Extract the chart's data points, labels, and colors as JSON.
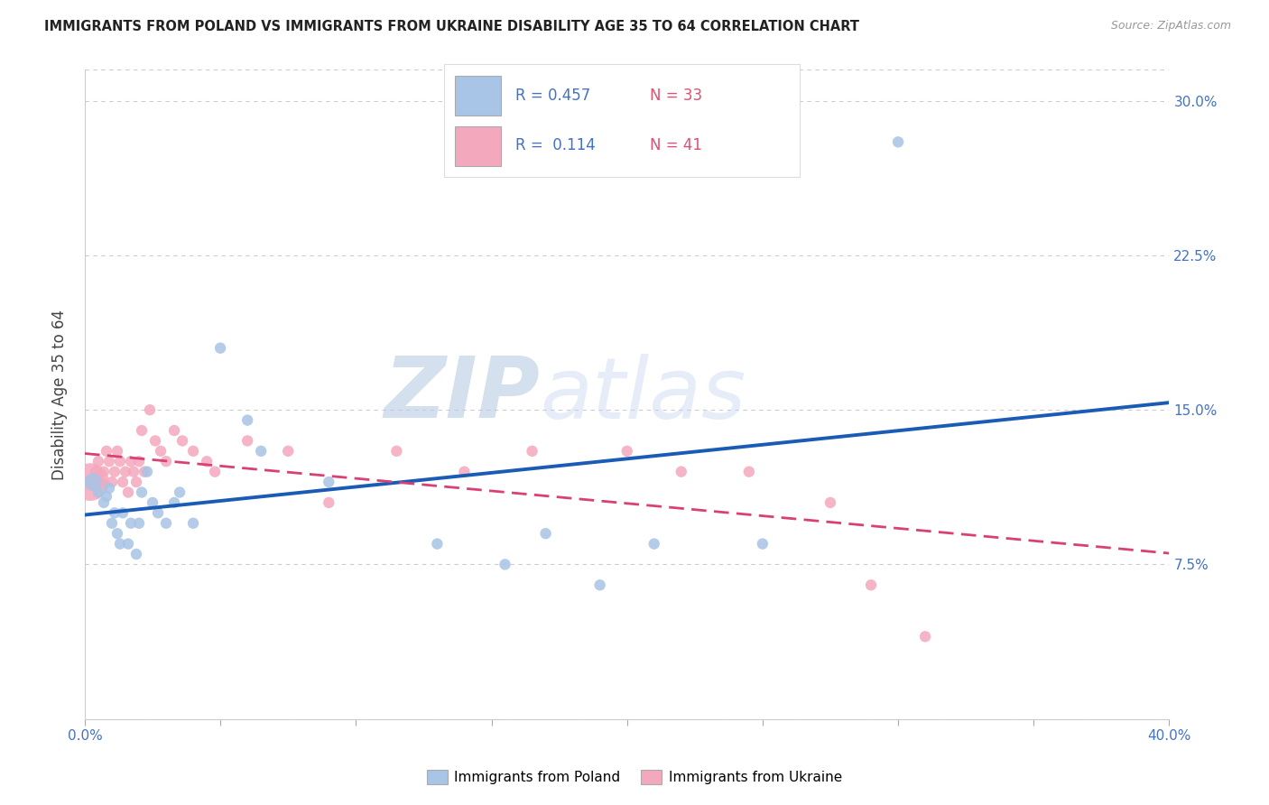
{
  "title": "IMMIGRANTS FROM POLAND VS IMMIGRANTS FROM UKRAINE DISABILITY AGE 35 TO 64 CORRELATION CHART",
  "source": "Source: ZipAtlas.com",
  "ylabel": "Disability Age 35 to 64",
  "xlim": [
    0.0,
    0.4
  ],
  "ylim": [
    0.0,
    0.315
  ],
  "xtick_positions": [
    0.0,
    0.05,
    0.1,
    0.15,
    0.2,
    0.25,
    0.3,
    0.35,
    0.4
  ],
  "xtick_labels": [
    "0.0%",
    "",
    "",
    "",
    "",
    "",
    "",
    "",
    "40.0%"
  ],
  "ytick_positions": [
    0.0,
    0.075,
    0.15,
    0.225,
    0.3
  ],
  "ytick_labels": [
    "",
    "7.5%",
    "15.0%",
    "22.5%",
    "30.0%"
  ],
  "tick_color": "#4472c4",
  "poland_color": "#a8c4e6",
  "ukraine_color": "#f4a8be",
  "poland_line_color": "#1a5cb5",
  "ukraine_line_color": "#d94075",
  "poland_R": "0.457",
  "poland_N": "33",
  "ukraine_R": "0.114",
  "ukraine_N": "41",
  "legend_label_poland": "Immigrants from Poland",
  "legend_label_ukraine": "Immigrants from Ukraine",
  "watermark_zip": "ZIP",
  "watermark_atlas": "atlas",
  "poland_x": [
    0.003,
    0.005,
    0.007,
    0.008,
    0.009,
    0.01,
    0.011,
    0.012,
    0.013,
    0.014,
    0.016,
    0.017,
    0.019,
    0.02,
    0.021,
    0.023,
    0.025,
    0.027,
    0.03,
    0.033,
    0.035,
    0.04,
    0.05,
    0.06,
    0.065,
    0.09,
    0.13,
    0.155,
    0.17,
    0.19,
    0.21,
    0.25,
    0.3
  ],
  "poland_y": [
    0.115,
    0.11,
    0.105,
    0.108,
    0.112,
    0.095,
    0.1,
    0.09,
    0.085,
    0.1,
    0.085,
    0.095,
    0.08,
    0.095,
    0.11,
    0.12,
    0.105,
    0.1,
    0.095,
    0.105,
    0.11,
    0.095,
    0.18,
    0.145,
    0.13,
    0.115,
    0.085,
    0.075,
    0.09,
    0.065,
    0.085,
    0.085,
    0.28
  ],
  "poland_size": [
    200,
    80,
    80,
    80,
    80,
    80,
    80,
    80,
    80,
    80,
    80,
    80,
    80,
    80,
    80,
    80,
    80,
    80,
    80,
    80,
    80,
    80,
    80,
    80,
    80,
    80,
    80,
    80,
    80,
    80,
    80,
    80,
    80
  ],
  "ukraine_x": [
    0.002,
    0.004,
    0.005,
    0.006,
    0.007,
    0.008,
    0.009,
    0.01,
    0.011,
    0.012,
    0.013,
    0.014,
    0.015,
    0.016,
    0.017,
    0.018,
    0.019,
    0.02,
    0.021,
    0.022,
    0.024,
    0.026,
    0.028,
    0.03,
    0.033,
    0.036,
    0.04,
    0.045,
    0.048,
    0.06,
    0.075,
    0.09,
    0.115,
    0.14,
    0.165,
    0.2,
    0.22,
    0.245,
    0.275,
    0.29,
    0.31
  ],
  "ukraine_y": [
    0.115,
    0.12,
    0.125,
    0.115,
    0.12,
    0.13,
    0.125,
    0.115,
    0.12,
    0.13,
    0.125,
    0.115,
    0.12,
    0.11,
    0.125,
    0.12,
    0.115,
    0.125,
    0.14,
    0.12,
    0.15,
    0.135,
    0.13,
    0.125,
    0.14,
    0.135,
    0.13,
    0.125,
    0.12,
    0.135,
    0.13,
    0.105,
    0.13,
    0.12,
    0.13,
    0.13,
    0.12,
    0.12,
    0.105,
    0.065,
    0.04
  ],
  "ukraine_size": [
    900,
    80,
    80,
    80,
    80,
    80,
    80,
    80,
    80,
    80,
    80,
    80,
    80,
    80,
    80,
    80,
    80,
    80,
    80,
    80,
    80,
    80,
    80,
    80,
    80,
    80,
    80,
    80,
    80,
    80,
    80,
    80,
    80,
    80,
    80,
    80,
    80,
    80,
    80,
    80,
    80
  ]
}
